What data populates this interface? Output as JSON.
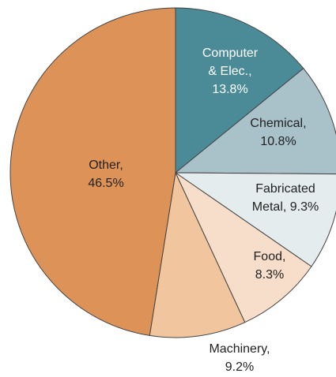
{
  "chart_data": {
    "type": "pie",
    "labels": [
      [
        "Computer",
        "& Elec.,",
        "13.8%"
      ],
      [
        "Chemical,",
        "10.8%"
      ],
      [
        "Fabricated",
        "Metal, 9.3%"
      ],
      [
        "Food,",
        "8.3%"
      ],
      [
        "Machinery,",
        "9.2%"
      ],
      [
        "Other,",
        "46.5%"
      ]
    ],
    "values": [
      13.8,
      10.8,
      9.3,
      8.3,
      9.2,
      46.5
    ],
    "colors": [
      "#4b8b97",
      "#a9c1c9",
      "#e4ecee",
      "#f6decb",
      "#f1c59e",
      "#dd9358"
    ],
    "label_colors": [
      "#ffffff",
      "#222222",
      "#222222",
      "#222222",
      "#222222",
      "#222222"
    ]
  }
}
